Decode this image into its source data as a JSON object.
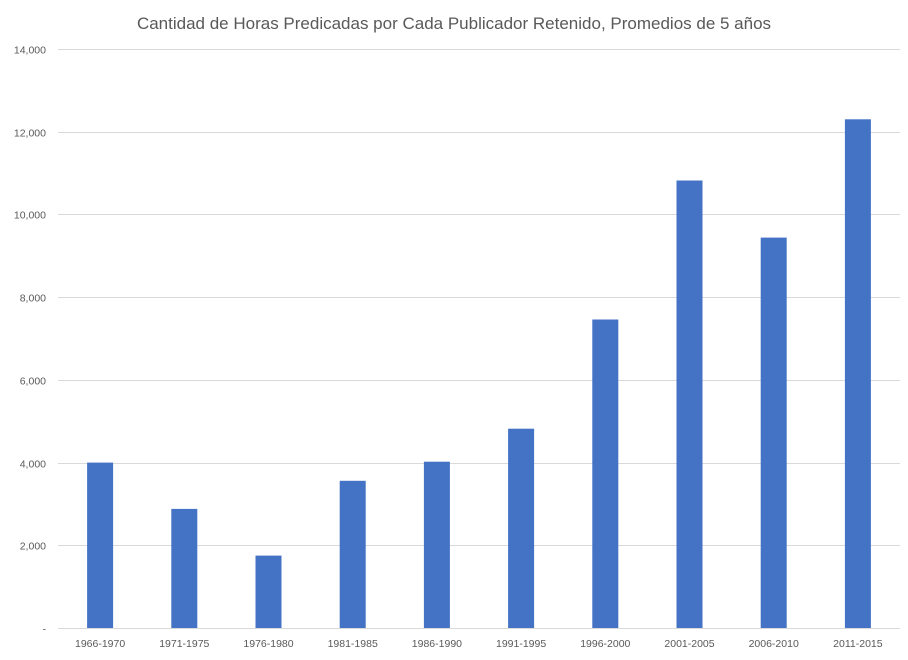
{
  "chart_data": {
    "type": "bar",
    "title": "Cantidad de Horas Predicadas por Cada Publicador Retenido, Promedios de 5 años",
    "xlabel": "",
    "ylabel": "",
    "categories": [
      "1966-1970",
      "1971-1975",
      "1976-1980",
      "1981-1985",
      "1986-1990",
      "1991-1995",
      "1996-2000",
      "2001-2005",
      "2006-2010",
      "2011-2015"
    ],
    "values": [
      4000,
      2880,
      1750,
      3560,
      4020,
      4820,
      7460,
      10820,
      9440,
      12300
    ],
    "ylim": [
      0,
      14000
    ],
    "yticks": [
      0,
      2000,
      4000,
      6000,
      8000,
      10000,
      12000,
      14000
    ],
    "ytick_labels": [
      "-",
      "2,000",
      "4,000",
      "6,000",
      "8,000",
      "10,000",
      "12,000",
      "14,000"
    ],
    "grid": true,
    "legend": "none",
    "bar_color": "#4472c4"
  }
}
